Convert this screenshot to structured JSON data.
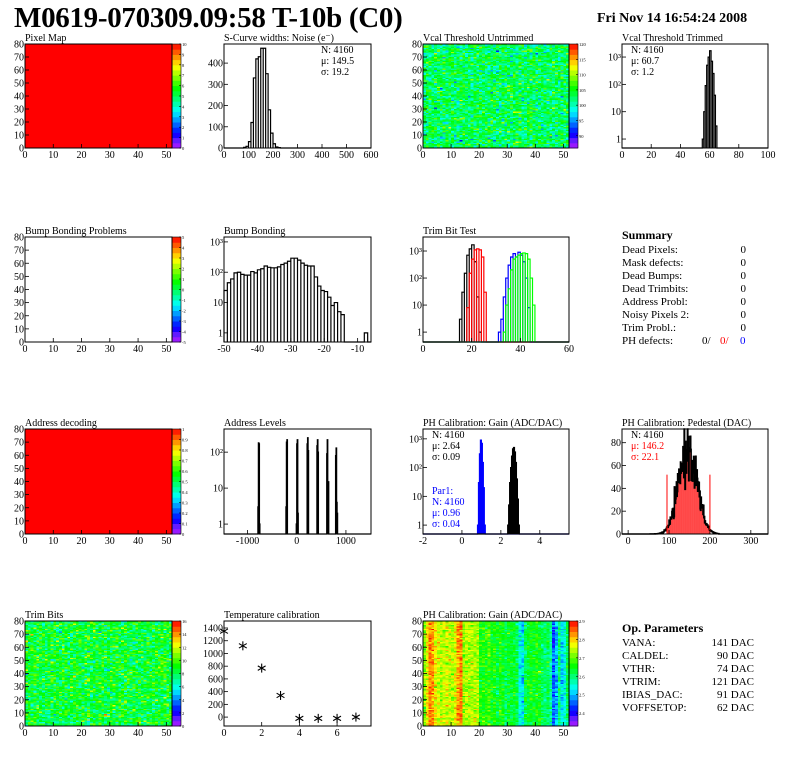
{
  "header": {
    "title": "M0619-070309.09:58 T-10b (C0)",
    "date": "Fri Nov 14 16:54:24 2008"
  },
  "colors": {
    "black": "#000000",
    "red": "#ff0000",
    "blue": "#0000ff",
    "green": "#00ff00"
  },
  "summary": {
    "title": "Summary",
    "rows": [
      {
        "label": "Dead Pixels:",
        "value": "0"
      },
      {
        "label": "Mask defects:",
        "value": "0"
      },
      {
        "label": "Dead Bumps:",
        "value": "0"
      },
      {
        "label": "Dead Trimbits:",
        "value": "0"
      },
      {
        "label": "Address Probl:",
        "value": "0"
      },
      {
        "label": "Noisy Pixels 2:",
        "value": "0"
      },
      {
        "label": "Trim Probl.:",
        "value": "0"
      }
    ],
    "ph_defects": {
      "label": "PH defects:",
      "values": [
        "0/",
        "0/",
        "0"
      ]
    }
  },
  "op_params": {
    "title": "Op. Parameters",
    "rows": [
      {
        "label": "VANA:",
        "value": "141 DAC"
      },
      {
        "label": "CALDEL:",
        "value": "90 DAC"
      },
      {
        "label": "VTHR:",
        "value": "74 DAC"
      },
      {
        "label": "VTRIM:",
        "value": "121 DAC"
      },
      {
        "label": "IBIAS_DAC:",
        "value": "91 DAC"
      },
      {
        "label": "VOFFSETOP:",
        "value": "62 DAC"
      }
    ]
  },
  "chart_data": [
    {
      "type": "heatmap",
      "title": "Pixel Map",
      "xlim": [
        0,
        52
      ],
      "ylim": [
        0,
        80
      ],
      "xticks": [
        0,
        10,
        20,
        30,
        40,
        50
      ],
      "yticks": [
        0,
        10,
        20,
        30,
        40,
        50,
        60,
        70,
        80
      ],
      "zlim": [
        0,
        10
      ],
      "zticks": [
        0,
        1,
        2,
        3,
        4,
        5,
        6,
        7,
        8,
        9,
        10
      ],
      "fill": {
        "mode": "uniform",
        "value": 10
      }
    },
    {
      "type": "histogram",
      "title": "S-Curve widths: Noise (e⁻)",
      "xlim": [
        0,
        600
      ],
      "ylim": [
        0,
        490
      ],
      "xticks": [
        0,
        100,
        200,
        300,
        400,
        500,
        600
      ],
      "yticks": [
        0,
        100,
        200,
        300,
        400
      ],
      "series": [
        {
          "color": "#000000",
          "lo": 80,
          "width": 10,
          "values": [
            3,
            8,
            30,
            120,
            330,
            420,
            430,
            470,
            470,
            350,
            180,
            70,
            20,
            5,
            2
          ]
        }
      ],
      "stats": [
        {
          "text": "N: 4160",
          "color": "#000000"
        },
        {
          "text": "μ: 149.5",
          "color": "#000000"
        },
        {
          "text": "σ: 19.2",
          "color": "#000000"
        }
      ]
    },
    {
      "type": "heatmap",
      "title": "Vcal Threshold Untrimmed",
      "xlim": [
        0,
        52
      ],
      "ylim": [
        0,
        80
      ],
      "xticks": [
        0,
        10,
        20,
        30,
        40,
        50
      ],
      "yticks": [
        0,
        10,
        20,
        30,
        40,
        50,
        60,
        70,
        80
      ],
      "zlim": [
        86,
        120
      ],
      "zticks": [
        90,
        95,
        100,
        105,
        110,
        115,
        120
      ],
      "fill": {
        "mode": "noise",
        "mean": 103,
        "sd": 3
      }
    },
    {
      "type": "histogram",
      "title": "Vcal Threshold Trimmed",
      "xlim": [
        0,
        100
      ],
      "ylim": [
        0.47,
        3000
      ],
      "ylog": true,
      "xticks": [
        0,
        20,
        40,
        60,
        80,
        100
      ],
      "yticks": [
        1,
        10,
        100,
        1000
      ],
      "ytick_labels": [
        "1",
        "10",
        "10²",
        "10³"
      ],
      "series": [
        {
          "color": "#000000",
          "lo": 55,
          "width": 1,
          "values": [
            1,
            10,
            90,
            500,
            1000,
            1700,
            700,
            250,
            40,
            3
          ]
        }
      ],
      "stats": [
        {
          "text": "N: 4160",
          "color": "#000000"
        },
        {
          "text": "μ: 60.7",
          "color": "#000000"
        },
        {
          "text": "σ:  1.2",
          "color": "#000000"
        }
      ],
      "stats_pos": "left"
    },
    {
      "type": "heatmap",
      "title": "Bump Bonding Problems",
      "xlim": [
        0,
        52
      ],
      "ylim": [
        0,
        80
      ],
      "xticks": [
        0,
        10,
        20,
        30,
        40,
        50
      ],
      "yticks": [
        0,
        10,
        20,
        30,
        40,
        50,
        60,
        70,
        80
      ],
      "zlim": [
        -5,
        5
      ],
      "zticks": [
        -5,
        -4,
        -3,
        -2,
        -1,
        0,
        1,
        2,
        3,
        4,
        5
      ],
      "fill": {
        "mode": "empty"
      }
    },
    {
      "type": "histogram",
      "title": "Bump Bonding",
      "xlim": [
        -50,
        -6
      ],
      "ylim": [
        0.5,
        1450
      ],
      "ylog": true,
      "xticks": [
        -50,
        -40,
        -30,
        -20,
        -10
      ],
      "yticks": [
        1,
        10,
        100,
        1000
      ],
      "ytick_labels": [
        "1",
        "10",
        "10²",
        "10³"
      ],
      "series": [
        {
          "color": "#000000",
          "lo": -50,
          "width": 1,
          "values": [
            25,
            45,
            60,
            95,
            100,
            85,
            80,
            80,
            105,
            95,
            120,
            130,
            160,
            145,
            140,
            140,
            150,
            180,
            200,
            230,
            290,
            290,
            250,
            200,
            170,
            160,
            160,
            70,
            35,
            25,
            23,
            15,
            8,
            10,
            5,
            4,
            0,
            0,
            0,
            0,
            0,
            0,
            1,
            0
          ]
        }
      ]
    },
    {
      "type": "histogram",
      "title": "Trim Bit Test",
      "xlim": [
        0,
        60
      ],
      "ylim": [
        0.43,
        3300
      ],
      "ylog": true,
      "xticks": [
        0,
        20,
        40,
        60
      ],
      "yticks": [
        1,
        10,
        100,
        1000
      ],
      "ytick_labels": [
        "1",
        "10",
        "10²",
        "10³"
      ],
      "series": [
        {
          "color": "#000000",
          "lo": 15,
          "width": 1,
          "values": [
            3,
            30,
            150,
            700,
            1200,
            1700,
            400,
            20,
            1
          ]
        },
        {
          "color": "#ff0000",
          "lo": 18,
          "width": 1,
          "values": [
            8,
            150,
            500,
            1100,
            1200,
            1100,
            600,
            30
          ]
        },
        {
          "color": "#0000ff",
          "lo": 31,
          "width": 1,
          "values": [
            1,
            3,
            20,
            100,
            300,
            600,
            800,
            600,
            900,
            700,
            400,
            100,
            8
          ]
        },
        {
          "color": "#00ff00",
          "lo": 33,
          "width": 1,
          "values": [
            1,
            10,
            40,
            200,
            500,
            600,
            700,
            800,
            850,
            800,
            500,
            100,
            10
          ]
        }
      ]
    },
    {
      "type": "heatmap",
      "title": "Address decoding",
      "xlim": [
        0,
        52
      ],
      "ylim": [
        0,
        80
      ],
      "xticks": [
        0,
        10,
        20,
        30,
        40,
        50
      ],
      "yticks": [
        0,
        10,
        20,
        30,
        40,
        50,
        60,
        70,
        80
      ],
      "zlim": [
        0,
        1
      ],
      "zticks": [
        0,
        0.1,
        0.2,
        0.3,
        0.4,
        0.5,
        0.6,
        0.7,
        0.8,
        0.9,
        1
      ],
      "fill": {
        "mode": "uniform",
        "value": 1
      }
    },
    {
      "type": "histogram",
      "title": "Address Levels",
      "xlim": [
        -1480,
        1510
      ],
      "ylim": [
        0.53,
        440
      ],
      "ylog": true,
      "xticks": [
        -1000,
        0,
        1000
      ],
      "yticks": [
        1,
        10,
        100
      ],
      "ytick_labels": [
        "1",
        "10",
        "10²"
      ],
      "series": [
        {
          "color": "#000000",
          "width": 10,
          "bins": [
            [
              -790,
              3
            ],
            [
              -780,
              180
            ],
            [
              -770,
              170
            ],
            [
              -760,
              1
            ],
            [
              -220,
              3
            ],
            [
              -210,
              190
            ],
            [
              -200,
              220
            ],
            [
              -10,
              1
            ],
            [
              0,
              170
            ],
            [
              10,
              220
            ],
            [
              20,
              2
            ],
            [
              210,
              170
            ],
            [
              220,
              250
            ],
            [
              230,
              110
            ],
            [
              410,
              150
            ],
            [
              420,
              220
            ],
            [
              430,
              100
            ],
            [
              610,
              90
            ],
            [
              620,
              220
            ],
            [
              630,
              14
            ],
            [
              640,
              15
            ],
            [
              790,
              80
            ],
            [
              800,
              130
            ],
            [
              810,
              4
            ],
            [
              820,
              2
            ]
          ]
        }
      ]
    },
    {
      "type": "histogram",
      "title": "PH Calibration: Gain (ADC/DAC)",
      "xlim": [
        -2,
        5.5
      ],
      "ylim": [
        0.49,
        2200
      ],
      "ylog": true,
      "xticks": [
        -2,
        0,
        2,
        4
      ],
      "yticks": [
        1,
        10,
        100,
        1000
      ],
      "ytick_labels": [
        "1",
        "10",
        "10²",
        "10³"
      ],
      "series": [
        {
          "color": "#0000ff",
          "lo": 0.8,
          "width": 0.05,
          "values": [
            1,
            30,
            300,
            900,
            700,
            150,
            20,
            1
          ]
        },
        {
          "color": "#000000",
          "lo": 2.35,
          "width": 0.05,
          "values": [
            1,
            5,
            30,
            100,
            250,
            450,
            500,
            350,
            150,
            40,
            8,
            1
          ]
        }
      ],
      "stats": [
        {
          "text": "N: 4160",
          "color": "#000000"
        },
        {
          "text": "μ: 2.64",
          "color": "#000000"
        },
        {
          "text": "σ: 0.09",
          "color": "#000000"
        }
      ],
      "stats_pos": "left",
      "stats2": [
        {
          "text": "Par1:",
          "color": "#0000ff"
        },
        {
          "text": "N: 4160",
          "color": "#0000ff"
        },
        {
          "text": "μ: 0.96",
          "color": "#0000ff"
        },
        {
          "text": "σ: 0.04",
          "color": "#0000ff"
        }
      ]
    },
    {
      "type": "histogram",
      "title": "PH Calibration: Pedestal (DAC)",
      "xlim": [
        -15,
        342
      ],
      "ylim": [
        0,
        92
      ],
      "xticks": [
        0,
        100,
        200,
        300
      ],
      "yticks": [
        0,
        20,
        40,
        60,
        80
      ],
      "gaussian": {
        "n": 4160,
        "mean": 146.2,
        "sigma": 22.1,
        "bin_width": 1,
        "from": 50,
        "to": 222,
        "color": "#000000",
        "fill_range": [
          95,
          200
        ],
        "fill_color": "#ff0000"
      },
      "cut_lines": [
        {
          "x": 95,
          "y": 52,
          "color": "#ff0000"
        },
        {
          "x": 200,
          "y": 52,
          "color": "#ff0000"
        }
      ],
      "stats": [
        {
          "text": "N: 4160",
          "color": "#000000"
        },
        {
          "text": "μ: 146.2",
          "color": "#ff0000"
        },
        {
          "text": "σ: 22.1",
          "color": "#ff0000"
        }
      ],
      "stats_pos": "left"
    },
    {
      "type": "heatmap",
      "title": "Trim Bits",
      "xlim": [
        0,
        52
      ],
      "ylim": [
        0,
        80
      ],
      "xticks": [
        0,
        10,
        20,
        30,
        40,
        50
      ],
      "yticks": [
        0,
        10,
        20,
        30,
        40,
        50,
        60,
        70,
        80
      ],
      "zlim": [
        0,
        16
      ],
      "zticks": [
        0,
        2,
        4,
        6,
        8,
        10,
        12,
        14,
        16
      ],
      "fill": {
        "mode": "noise",
        "mean": 8.6,
        "sd": 1.4
      }
    },
    {
      "type": "scatter",
      "title": "Temperature calibration",
      "xlim": [
        0,
        7.8
      ],
      "ylim": [
        -140,
        1510
      ],
      "xticks": [
        0,
        2,
        4,
        6
      ],
      "yticks": [
        0,
        200,
        400,
        600,
        800,
        1000,
        1200,
        1400
      ],
      "points": [
        [
          0,
          1350
        ],
        [
          1,
          1120
        ],
        [
          2,
          770
        ],
        [
          3,
          340
        ],
        [
          4,
          -20
        ],
        [
          5,
          -20
        ],
        [
          6,
          -20
        ],
        [
          7,
          0
        ]
      ],
      "marker": "star"
    },
    {
      "type": "heatmap",
      "title": "PH Calibration: Gain (ADC/DAC)",
      "xlim": [
        0,
        52
      ],
      "ylim": [
        0,
        80
      ],
      "xticks": [
        0,
        10,
        20,
        30,
        40,
        50
      ],
      "yticks": [
        0,
        10,
        20,
        30,
        40,
        50,
        60,
        70,
        80
      ],
      "zlim": [
        2.33,
        2.9
      ],
      "zticks": [
        2.4,
        2.5,
        2.6,
        2.7,
        2.8,
        2.9
      ],
      "fill": {
        "mode": "columns",
        "sd": 0.03,
        "means": [
          2.72,
          2.78,
          2.84,
          2.83,
          2.78,
          2.76,
          2.74,
          2.75,
          2.76,
          2.75,
          2.74,
          2.76,
          2.82,
          2.84,
          2.72,
          2.74,
          2.73,
          2.74,
          2.74,
          2.74,
          2.66,
          2.67,
          2.66,
          2.68,
          2.65,
          2.66,
          2.63,
          2.66,
          2.65,
          2.62,
          2.64,
          2.63,
          2.64,
          2.62,
          2.55,
          2.52,
          2.62,
          2.64,
          2.65,
          2.64,
          2.66,
          2.65,
          2.62,
          2.6,
          2.62,
          2.58,
          2.45,
          2.5,
          2.6,
          2.52,
          2.55,
          2.62
        ]
      }
    }
  ]
}
